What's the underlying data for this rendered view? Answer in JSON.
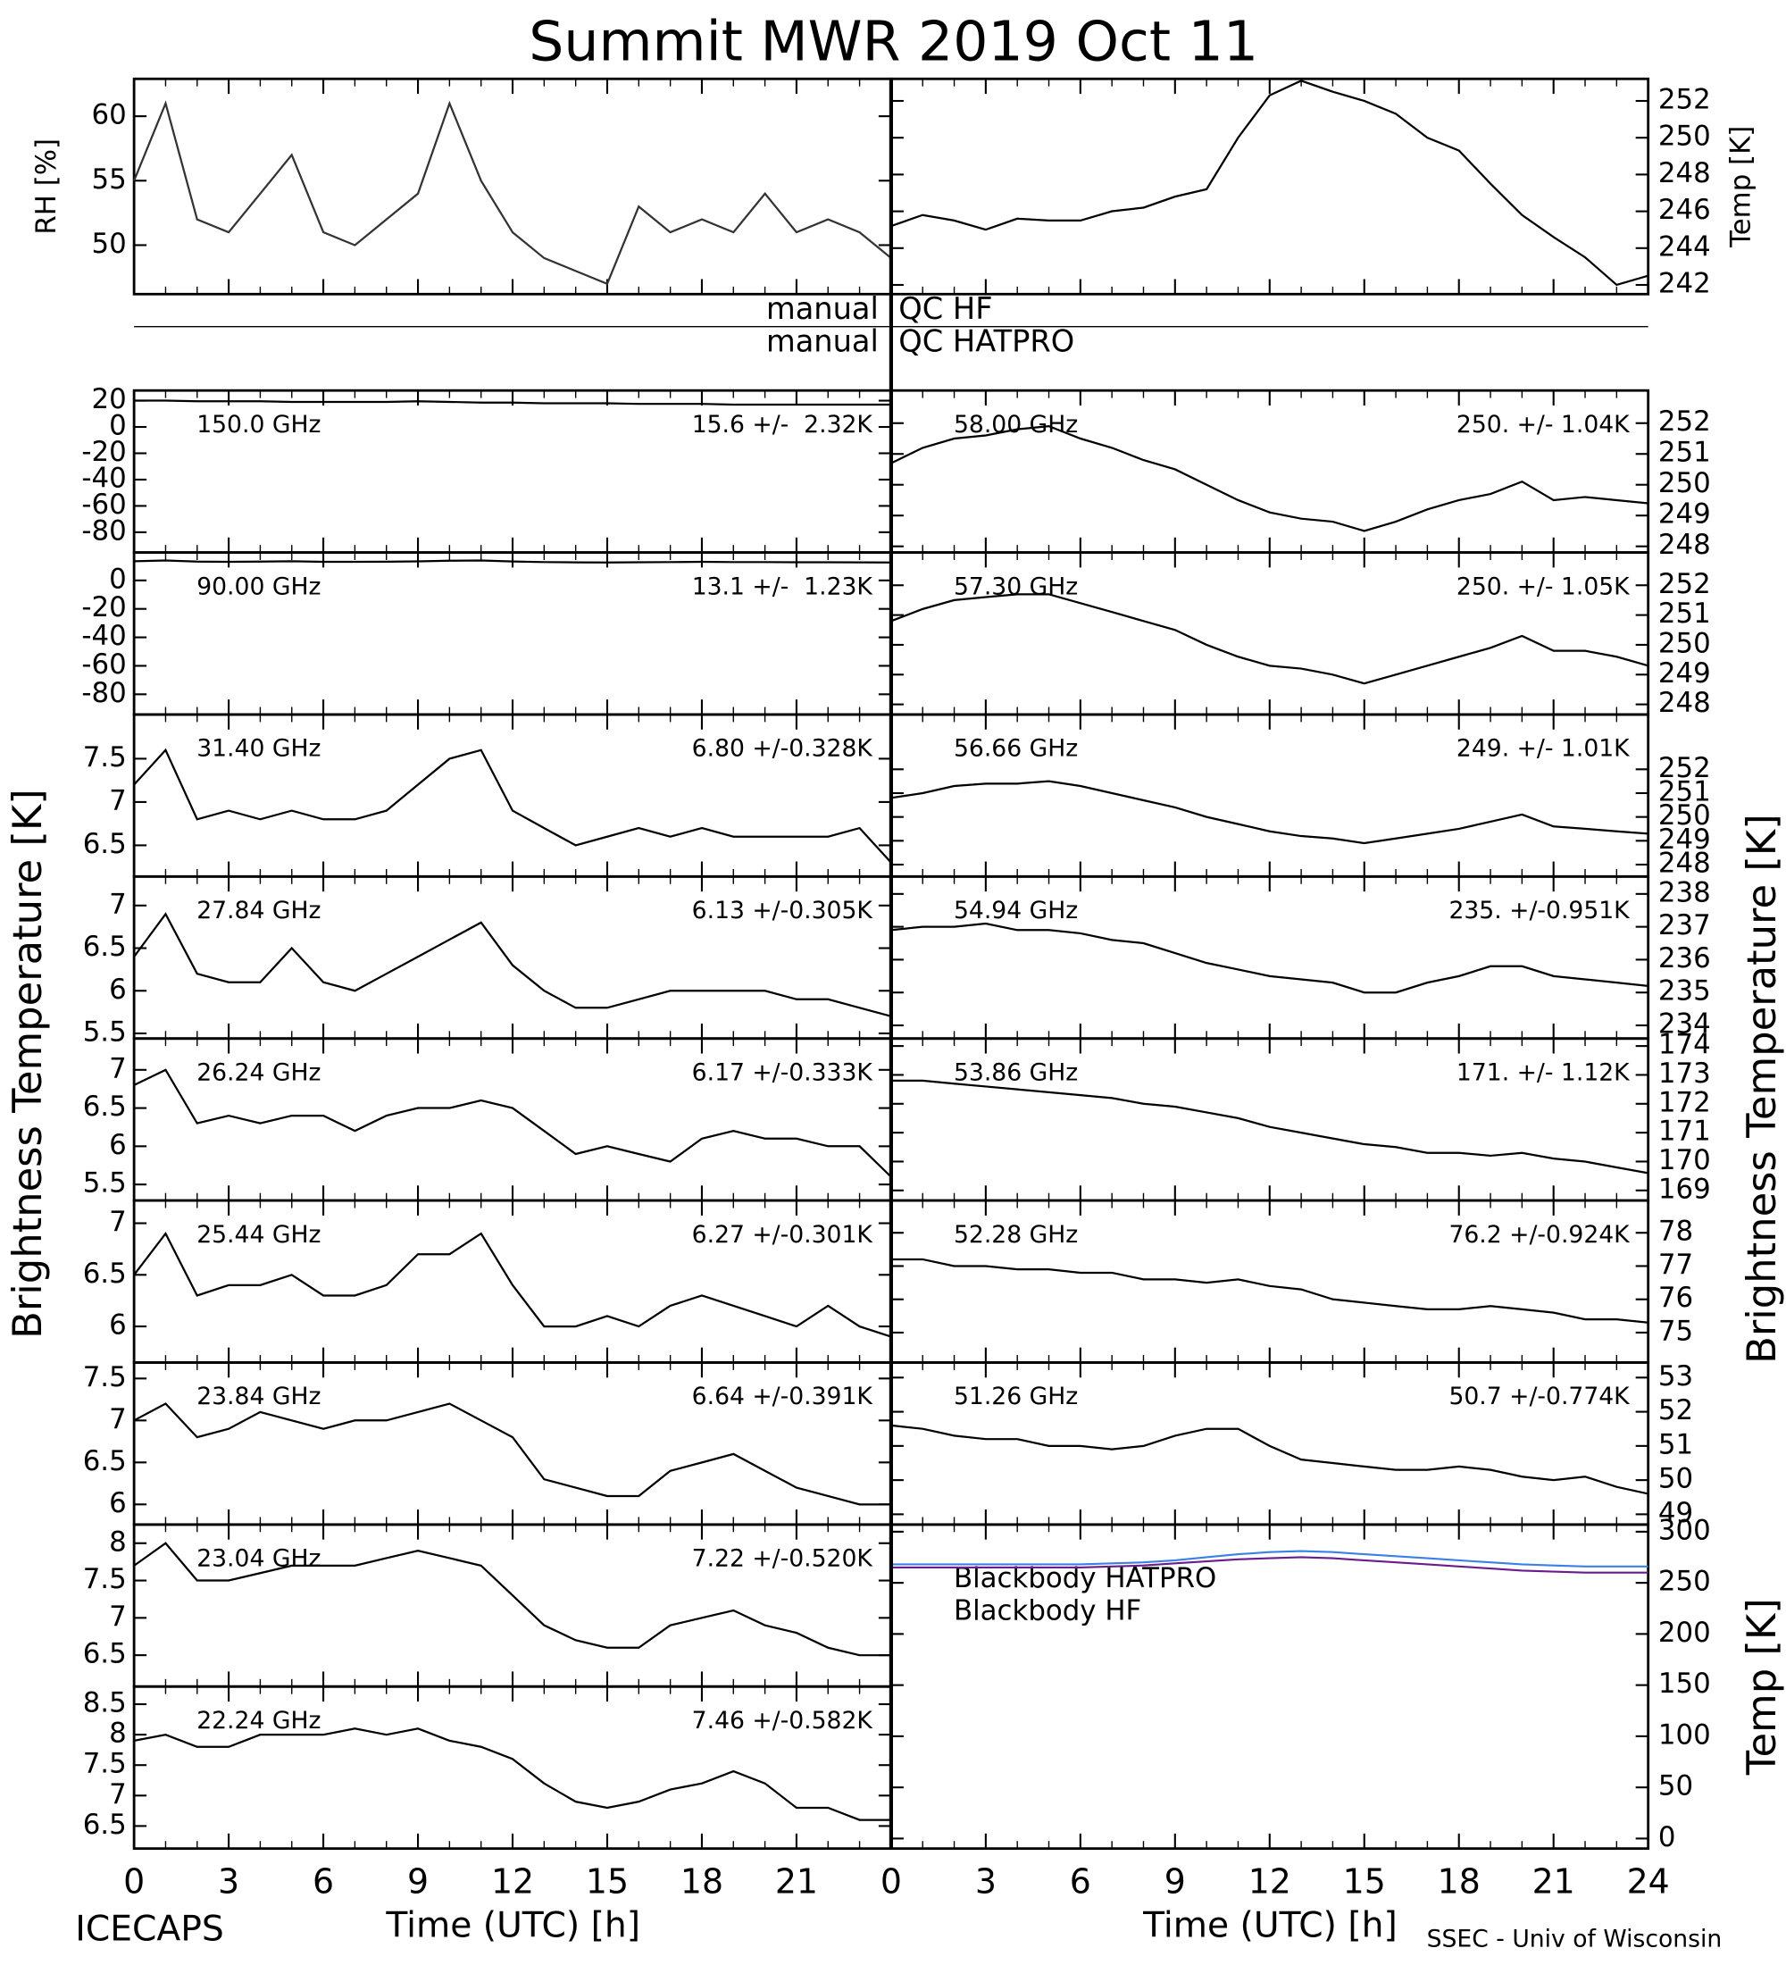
{
  "title": "Summit MWR 2019 Oct 11",
  "footer_left": "ICECAPS",
  "footer_right": "SSEC - Univ of Wisconsin",
  "qc_flags": [
    [
      "manual",
      "QC HF"
    ],
    [
      "manual",
      "QC HATPRO"
    ]
  ],
  "left_ylabel": "Brightness Temperature [K]",
  "right_ylabel": "Brightness Temperature [K]",
  "chart_data": {
    "x": [
      0,
      1,
      2,
      3,
      4,
      5,
      6,
      7,
      8,
      9,
      10,
      11,
      12,
      13,
      14,
      15,
      16,
      17,
      18,
      19,
      20,
      21,
      22,
      23,
      24
    ],
    "xlim": [
      0,
      24
    ],
    "xticks_left": [
      0,
      3,
      6,
      9,
      12,
      15,
      18,
      21
    ],
    "xticks_right": [
      0,
      3,
      6,
      9,
      12,
      15,
      18,
      21,
      24
    ],
    "xlabel": "Time (UTC) [h]",
    "label_color": "#ee3b3b",
    "left": [
      {
        "type": "line",
        "ylabel": "RH [%]",
        "ylim": [
          46.2,
          62.9
        ],
        "yticks": [
          50,
          55,
          60
        ],
        "series": [
          {
            "color": "#333333",
            "values": [
              55,
              61,
              52,
              51,
              54,
              57,
              51,
              50,
              52,
              54,
              61,
              55,
              51,
              49,
              48,
              47,
              53,
              51,
              52,
              51,
              54,
              51,
              52,
              51,
              49
            ]
          }
        ]
      },
      {
        "type": "line",
        "label": "150.0 GHz",
        "stats": "15.6 +/-  2.32K",
        "ylim": [
          -95.4,
          27.7
        ],
        "yticks": [
          20,
          0,
          -20,
          -40,
          -60,
          -80
        ],
        "series": [
          {
            "color": "#000000",
            "values": [
              20,
              20,
              19.5,
              19.5,
              19.5,
              19,
              19,
              19,
              19,
              19.5,
              19,
              18.5,
              18.5,
              18,
              18,
              18,
              17.5,
              17.5,
              17.5,
              17,
              17,
              17,
              17,
              17,
              17
            ]
          }
        ]
      },
      {
        "type": "line",
        "label": "90.00 GHz",
        "stats": "13.1 +/-  1.23K",
        "ylim": [
          -94.2,
          19.6
        ],
        "yticks": [
          0,
          -20,
          -40,
          -60,
          -80
        ],
        "series": [
          {
            "color": "#000000",
            "values": [
              13.5,
              14,
              13.2,
              13,
              13.2,
              13.5,
              13,
              13,
              13.1,
              13.4,
              13.8,
              14,
              13.3,
              12.9,
              12.7,
              12.6,
              12.8,
              12.9,
              13,
              12.9,
              12.9,
              12.8,
              12.8,
              12.7,
              12.6
            ]
          }
        ]
      },
      {
        "type": "line",
        "label": "31.40 GHz",
        "stats": "6.80 +/-0.328K",
        "ylim": [
          6.14,
          8.01
        ],
        "yticks": [
          6.5,
          7.0,
          7.5
        ],
        "series": [
          {
            "color": "#000000",
            "values": [
              7.2,
              7.6,
              6.8,
              6.9,
              6.8,
              6.9,
              6.8,
              6.8,
              6.9,
              7.2,
              7.5,
              7.6,
              6.9,
              6.7,
              6.5,
              6.6,
              6.7,
              6.6,
              6.7,
              6.6,
              6.6,
              6.6,
              6.6,
              6.7,
              6.3
            ]
          }
        ]
      },
      {
        "type": "line",
        "label": "27.84 GHz",
        "stats": "6.13 +/-0.305K",
        "ylim": [
          5.44,
          7.34
        ],
        "yticks": [
          5.5,
          6.0,
          6.5,
          7.0
        ],
        "series": [
          {
            "color": "#000000",
            "values": [
              6.4,
              6.9,
              6.2,
              6.1,
              6.1,
              6.5,
              6.1,
              6.0,
              6.2,
              6.4,
              6.6,
              6.8,
              6.3,
              6.0,
              5.8,
              5.8,
              5.9,
              6.0,
              6.0,
              6.0,
              6.0,
              5.9,
              5.9,
              5.8,
              5.7
            ]
          }
        ]
      },
      {
        "type": "line",
        "label": "26.24 GHz",
        "stats": "6.17 +/-0.333K",
        "ylim": [
          5.29,
          7.41
        ],
        "yticks": [
          5.5,
          6.0,
          6.5,
          7.0
        ],
        "series": [
          {
            "color": "#000000",
            "values": [
              6.8,
              7.0,
              6.3,
              6.4,
              6.3,
              6.4,
              6.4,
              6.2,
              6.4,
              6.5,
              6.5,
              6.6,
              6.5,
              6.2,
              5.9,
              6.0,
              5.9,
              5.8,
              6.1,
              6.2,
              6.1,
              6.1,
              6.0,
              6.0,
              5.6
            ]
          }
        ]
      },
      {
        "type": "line",
        "label": "25.44 GHz",
        "stats": "6.27 +/-0.301K",
        "ylim": [
          5.65,
          7.22
        ],
        "yticks": [
          6.0,
          6.5,
          7.0
        ],
        "series": [
          {
            "color": "#000000",
            "values": [
              6.5,
              6.9,
              6.3,
              6.4,
              6.4,
              6.5,
              6.3,
              6.3,
              6.4,
              6.7,
              6.7,
              6.9,
              6.4,
              6.0,
              6.0,
              6.1,
              6.0,
              6.2,
              6.3,
              6.2,
              6.1,
              6.0,
              6.2,
              6.0,
              5.9
            ]
          }
        ]
      },
      {
        "type": "line",
        "label": "23.84 GHz",
        "stats": "6.64 +/-0.391K",
        "ylim": [
          5.76,
          7.69
        ],
        "yticks": [
          6.0,
          6.5,
          7.0,
          7.5
        ],
        "series": [
          {
            "color": "#000000",
            "values": [
              7.0,
              7.2,
              6.8,
              6.9,
              7.1,
              7.0,
              6.9,
              7.0,
              7.0,
              7.1,
              7.2,
              7.0,
              6.8,
              6.3,
              6.2,
              6.1,
              6.1,
              6.4,
              6.5,
              6.6,
              6.4,
              6.2,
              6.1,
              6.0,
              6.0
            ]
          }
        ]
      },
      {
        "type": "line",
        "label": "23.04 GHz",
        "stats": "7.22 +/-0.520K",
        "ylim": [
          6.08,
          8.25
        ],
        "yticks": [
          6.5,
          7.0,
          7.5,
          8.0
        ],
        "series": [
          {
            "color": "#000000",
            "values": [
              7.7,
              8.0,
              7.5,
              7.5,
              7.6,
              7.7,
              7.7,
              7.7,
              7.8,
              7.9,
              7.8,
              7.7,
              7.3,
              6.9,
              6.7,
              6.6,
              6.6,
              6.9,
              7.0,
              7.1,
              6.9,
              6.8,
              6.6,
              6.5,
              6.5
            ]
          }
        ]
      },
      {
        "type": "line",
        "label": "22.24 GHz",
        "stats": "7.46 +/-0.582K",
        "ylim": [
          6.13,
          8.79
        ],
        "yticks": [
          6.5,
          7.0,
          7.5,
          8.0,
          8.5
        ],
        "series": [
          {
            "color": "#000000",
            "values": [
              7.9,
              8.0,
              7.8,
              7.8,
              8.0,
              8.0,
              8.0,
              8.1,
              8.0,
              8.1,
              7.9,
              7.8,
              7.6,
              7.2,
              6.9,
              6.8,
              6.9,
              7.1,
              7.2,
              7.4,
              7.2,
              6.8,
              6.8,
              6.6,
              6.6
            ]
          }
        ]
      }
    ],
    "right": [
      {
        "type": "line",
        "ylabel": "Temp [K]",
        "ylim": [
          241.5,
          253.2
        ],
        "yticks": [
          242,
          244,
          246,
          248,
          250,
          252
        ],
        "series": [
          {
            "color": "#000000",
            "values": [
              245.2,
              245.8,
              245.5,
              245,
              245.6,
              245.5,
              245.5,
              246,
              246.2,
              246.8,
              247.2,
              250,
              252.3,
              253.1,
              252.5,
              252,
              251.3,
              250,
              249.3,
              247.5,
              245.8,
              244.6,
              243.5,
              242,
              242.5
            ]
          }
        ]
      },
      {
        "type": "line",
        "label": "58.00 GHz",
        "stats": "250. +/- 1.04K",
        "ylim": [
          247.8,
          253.06
        ],
        "yticks": [
          248,
          249,
          250,
          251,
          252
        ],
        "series": [
          {
            "color": "#000000",
            "values": [
              250.7,
              251.2,
              251.5,
              251.6,
              251.8,
              251.9,
              251.5,
              251.2,
              250.8,
              250.5,
              250,
              249.5,
              249.1,
              248.9,
              248.8,
              248.5,
              248.8,
              249.2,
              249.5,
              249.7,
              250.1,
              249.5,
              249.6,
              249.5,
              249.4
            ]
          }
        ]
      },
      {
        "type": "line",
        "label": "57.30 GHz",
        "stats": "250. +/- 1.05K",
        "ylim": [
          247.66,
          253.1
        ],
        "yticks": [
          248,
          249,
          250,
          251,
          252
        ],
        "series": [
          {
            "color": "#000000",
            "values": [
              250.8,
              251.2,
              251.5,
              251.6,
              251.7,
              251.7,
              251.4,
              251.1,
              250.8,
              250.5,
              250,
              249.6,
              249.3,
              249.2,
              249,
              248.7,
              249,
              249.3,
              249.6,
              249.9,
              250.3,
              249.8,
              249.8,
              249.6,
              249.3
            ]
          }
        ]
      },
      {
        "type": "line",
        "label": "56.66 GHz",
        "stats": "249. +/- 1.01K",
        "ylim": [
          247.5,
          254.3
        ],
        "yticks": [
          248,
          249,
          250,
          251,
          252
        ],
        "series": [
          {
            "color": "#000000",
            "values": [
              250.8,
              251,
              251.3,
              251.4,
              251.4,
              251.5,
              251.3,
              251,
              250.7,
              250.4,
              250,
              249.7,
              249.4,
              249.2,
              249.1,
              248.9,
              249.1,
              249.3,
              249.5,
              249.8,
              250.1,
              249.6,
              249.5,
              249.4,
              249.3
            ]
          }
        ]
      },
      {
        "type": "line",
        "label": "54.94 GHz",
        "stats": "235. +/-0.951K",
        "ylim": [
          233.6,
          238.53
        ],
        "yticks": [
          234,
          235,
          236,
          237,
          238
        ],
        "series": [
          {
            "color": "#000000",
            "values": [
              236.9,
              237,
              237,
              237.1,
              236.9,
              236.9,
              236.8,
              236.6,
              236.5,
              236.2,
              235.9,
              235.7,
              235.5,
              235.4,
              235.3,
              235.0,
              235.0,
              235.3,
              235.5,
              235.8,
              235.8,
              235.5,
              235.4,
              235.3,
              235.2
            ]
          }
        ]
      },
      {
        "type": "line",
        "label": "53.86 GHz",
        "stats": "171. +/- 1.12K",
        "ylim": [
          168.65,
          174.26
        ],
        "yticks": [
          169,
          170,
          171,
          172,
          173,
          174
        ],
        "series": [
          {
            "color": "#000000",
            "values": [
              172.8,
              172.8,
              172.7,
              172.6,
              172.5,
              172.4,
              172.3,
              172.2,
              172.0,
              171.9,
              171.7,
              171.5,
              171.2,
              171.0,
              170.8,
              170.6,
              170.5,
              170.3,
              170.3,
              170.2,
              170.3,
              170.1,
              170.0,
              169.8,
              169.6
            ]
          }
        ]
      },
      {
        "type": "line",
        "label": "52.28 GHz",
        "stats": "76.2 +/-0.924K",
        "ylim": [
          74.1,
          78.97
        ],
        "yticks": [
          75,
          76,
          77,
          78
        ],
        "series": [
          {
            "color": "#000000",
            "values": [
              77.2,
              77.2,
              77.0,
              77.0,
              76.9,
              76.9,
              76.8,
              76.8,
              76.6,
              76.6,
              76.5,
              76.6,
              76.4,
              76.3,
              76.0,
              75.9,
              75.8,
              75.7,
              75.7,
              75.8,
              75.7,
              75.6,
              75.4,
              75.4,
              75.3
            ]
          }
        ]
      },
      {
        "type": "line",
        "label": "51.26 GHz",
        "stats": "50.7 +/-0.774K",
        "ylim": [
          48.7,
          53.44
        ],
        "yticks": [
          49,
          50,
          51,
          52,
          53
        ],
        "series": [
          {
            "color": "#000000",
            "values": [
              51.6,
              51.5,
              51.3,
              51.2,
              51.2,
              51.0,
              51.0,
              50.9,
              51.0,
              51.3,
              51.5,
              51.5,
              51.0,
              50.6,
              50.5,
              50.4,
              50.3,
              50.3,
              50.4,
              50.3,
              50.1,
              50.0,
              50.1,
              49.8,
              49.6
            ]
          }
        ]
      },
      {
        "type": "line",
        "ylabel": "Temp [K]",
        "ylim": [
          -9.8,
          307
        ],
        "yticks": [
          0,
          50,
          100,
          150,
          200,
          250,
          300
        ],
        "series": [
          {
            "name": "Blackbody HATPRO",
            "color": "#3a80e8",
            "values": [
              268,
              268,
              268,
              268,
              268,
              268,
              268,
              269,
              270,
              272,
              275,
              278,
              280,
              281,
              280,
              278,
              276,
              274,
              272,
              270,
              268,
              267,
              266,
              266,
              266
            ]
          },
          {
            "name": "Blackbody HF",
            "color": "#6a1b8c",
            "values": [
              265,
              265,
              265,
              265,
              265,
              265,
              265,
              266,
              267,
              269,
              271,
              273,
              274,
              275,
              274,
              272,
              270,
              268,
              266,
              264,
              262,
              261,
              260,
              260,
              260
            ]
          }
        ]
      }
    ]
  }
}
